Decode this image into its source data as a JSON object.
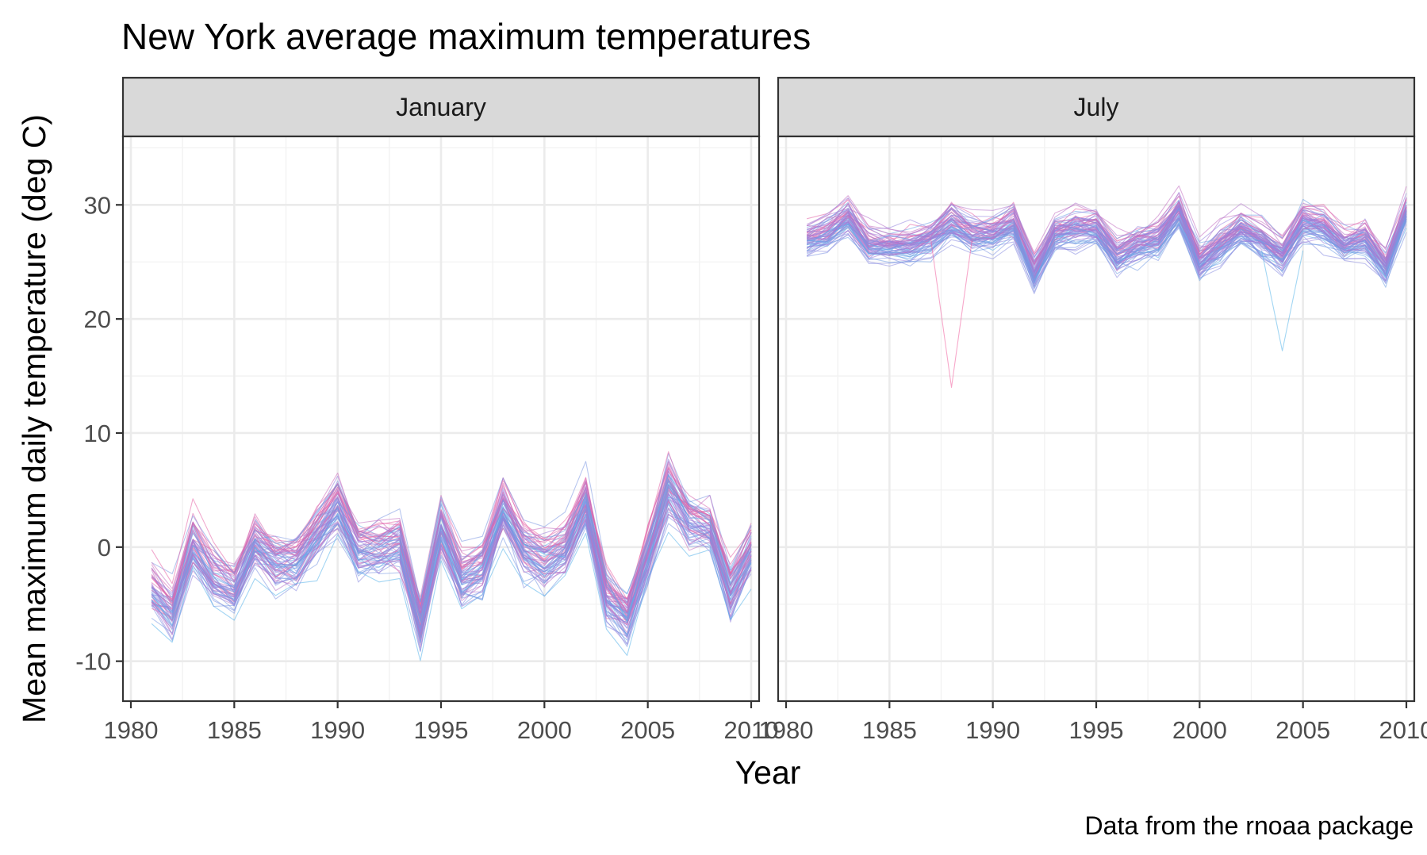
{
  "title": "New York average maximum temperatures",
  "caption": "Data from the rnoaa package",
  "colors": {
    "background": "#ffffff",
    "grid": "#ebebeb",
    "strip": "#d9d9d9",
    "border": "#333333",
    "series_low": "#56b4e9",
    "series_mid": "#9e7bdc",
    "series_high": "#f0609e"
  },
  "chart_data": {
    "type": "line",
    "xlabel": "Year",
    "ylabel": "Mean maximum daily temperature (deg C)",
    "xlim": [
      1980,
      2010
    ],
    "ylim": [
      -13.5,
      36
    ],
    "x_ticks": [
      1980,
      1985,
      1990,
      1995,
      2000,
      2005,
      2010
    ],
    "y_ticks": [
      -10,
      0,
      10,
      20,
      30
    ],
    "grid": true,
    "legend": "none",
    "facets": [
      {
        "label": "January",
        "x": [
          1981,
          1982,
          1983,
          1984,
          1985,
          1986,
          1987,
          1988,
          1989,
          1990,
          1991,
          1992,
          1993,
          1994,
          1995,
          1996,
          1997,
          1998,
          1999,
          2000,
          2001,
          2002,
          2003,
          2004,
          2005,
          2006,
          2007,
          2008,
          2009,
          2010
        ],
        "mean_series": [
          -3.5,
          -5.5,
          0.5,
          -2.5,
          -3.5,
          0.5,
          -1.0,
          -1.0,
          1.5,
          4.0,
          0.0,
          0.0,
          0.5,
          -6.5,
          2.0,
          -2.5,
          -1.5,
          3.5,
          0.0,
          -1.0,
          0.0,
          4.0,
          -4.0,
          -6.0,
          -0.5,
          5.5,
          2.5,
          2.0,
          -3.5,
          0.0
        ],
        "approx_range": [
          -10.5,
          9.5
        ]
      },
      {
        "label": "July",
        "x": [
          1981,
          1982,
          1983,
          1984,
          1985,
          1986,
          1987,
          1988,
          1989,
          1990,
          1991,
          1992,
          1993,
          1994,
          1995,
          1996,
          1997,
          1998,
          1999,
          2000,
          2001,
          2002,
          2003,
          2004,
          2005,
          2006,
          2007,
          2008,
          2009,
          2010
        ],
        "mean_series": [
          27.0,
          27.5,
          29.0,
          26.5,
          26.5,
          26.5,
          27.0,
          28.5,
          27.5,
          27.5,
          28.5,
          24.0,
          27.5,
          28.0,
          28.0,
          25.5,
          26.5,
          27.0,
          29.5,
          25.0,
          26.5,
          28.0,
          27.0,
          25.5,
          28.5,
          28.0,
          26.5,
          27.0,
          24.5,
          29.5
        ],
        "approx_range": [
          14.0,
          33.5
        ]
      }
    ]
  }
}
